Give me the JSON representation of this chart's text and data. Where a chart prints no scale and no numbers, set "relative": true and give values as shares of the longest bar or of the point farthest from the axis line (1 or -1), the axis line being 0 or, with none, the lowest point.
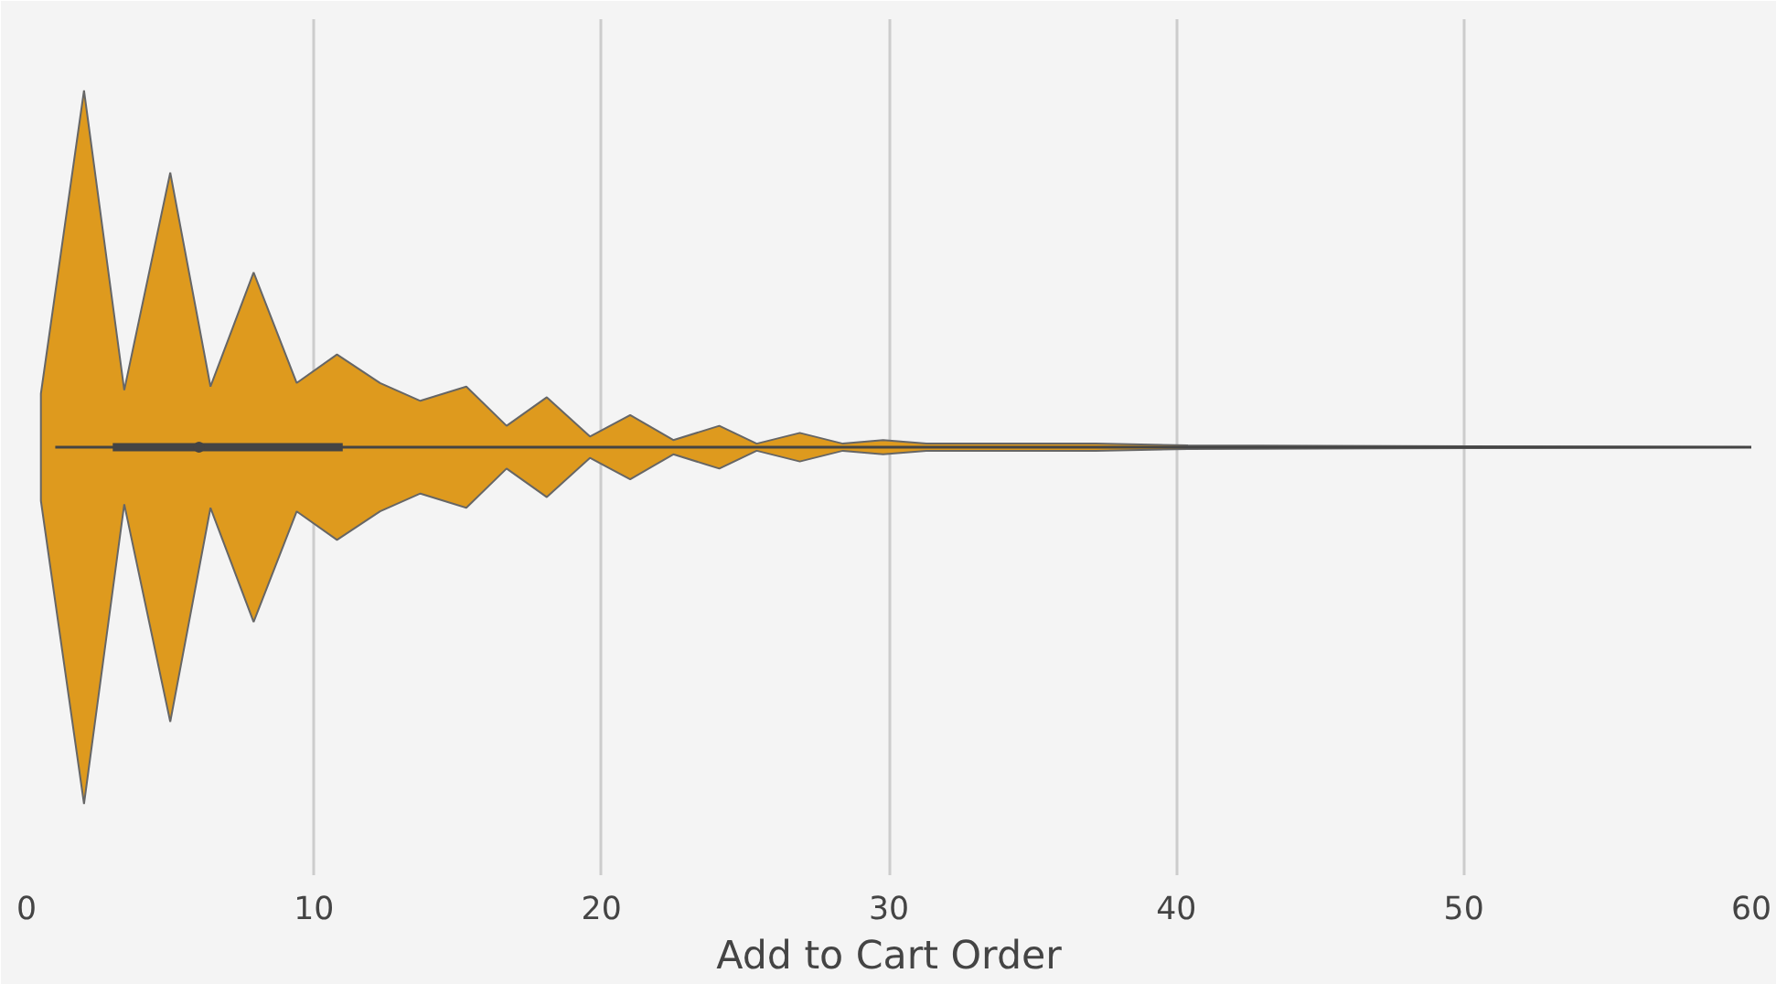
{
  "chart_data": {
    "type": "area",
    "relative": true,
    "xlabel": "Add to Cart Order",
    "xlim": [
      0,
      60
    ],
    "xticks": [
      0,
      10,
      20,
      30,
      40,
      50,
      60
    ],
    "grid": "x",
    "series": [
      {
        "color": "#de9a1e",
        "x": [
          0.5,
          2.0,
          3.4,
          5.0,
          6.4,
          7.9,
          9.4,
          10.8,
          12.3,
          13.7,
          15.3,
          16.7,
          18.1,
          19.6,
          21.0,
          22.5,
          24.1,
          25.4,
          26.9,
          28.4,
          29.8,
          31.3,
          37.2,
          40.4,
          60
        ],
        "values": [
          0.15,
          1.0,
          0.16,
          0.77,
          0.17,
          0.49,
          0.18,
          0.26,
          0.18,
          0.13,
          0.17,
          0.06,
          0.14,
          0.03,
          0.09,
          0.02,
          0.06,
          0.01,
          0.04,
          0.01,
          0.02,
          0.01,
          0.01,
          0.005,
          0
        ]
      },
      {
        "type": "line",
        "color": "#444444",
        "x": [
          1,
          60
        ],
        "values": [
          0,
          0
        ]
      },
      {
        "type": "scatter",
        "color": "#444444",
        "x": [
          6
        ],
        "values": [
          0
        ],
        "xerrors": [
          [
            3,
            11
          ]
        ]
      }
    ]
  }
}
